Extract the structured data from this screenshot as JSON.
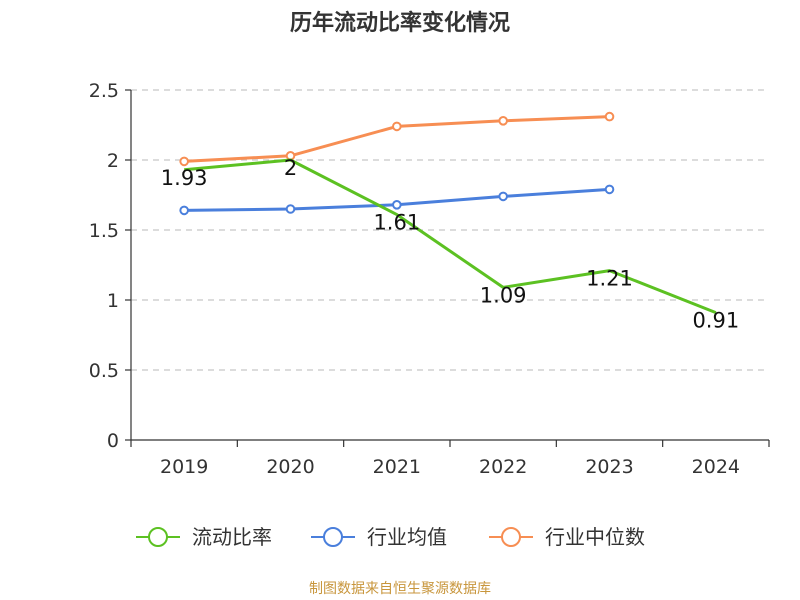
{
  "chart_data": {
    "type": "line",
    "title": "历年流动比率变化情况",
    "categories": [
      "2019",
      "2020",
      "2021",
      "2022",
      "2023",
      "2024"
    ],
    "ylim": [
      0,
      2.5
    ],
    "yticks": [
      "0",
      "0.5",
      "1",
      "1.5",
      "2",
      "2.5"
    ],
    "grid": true,
    "legend_position": "bottom",
    "series": [
      {
        "name": "流动比率",
        "color": "#5cc122",
        "values": [
          1.93,
          2,
          1.61,
          1.09,
          1.21,
          0.91
        ],
        "labels": [
          "1.93",
          "2",
          "1.61",
          "1.09",
          "1.21",
          "0.91"
        ]
      },
      {
        "name": "行业均值",
        "color": "#4a7fdc",
        "values": [
          1.64,
          1.65,
          1.68,
          1.74,
          1.79,
          null
        ]
      },
      {
        "name": "行业中位数",
        "color": "#f78e53",
        "values": [
          1.99,
          2.03,
          2.24,
          2.28,
          2.31,
          null
        ]
      }
    ],
    "source": "制图数据来自恒生聚源数据库"
  }
}
